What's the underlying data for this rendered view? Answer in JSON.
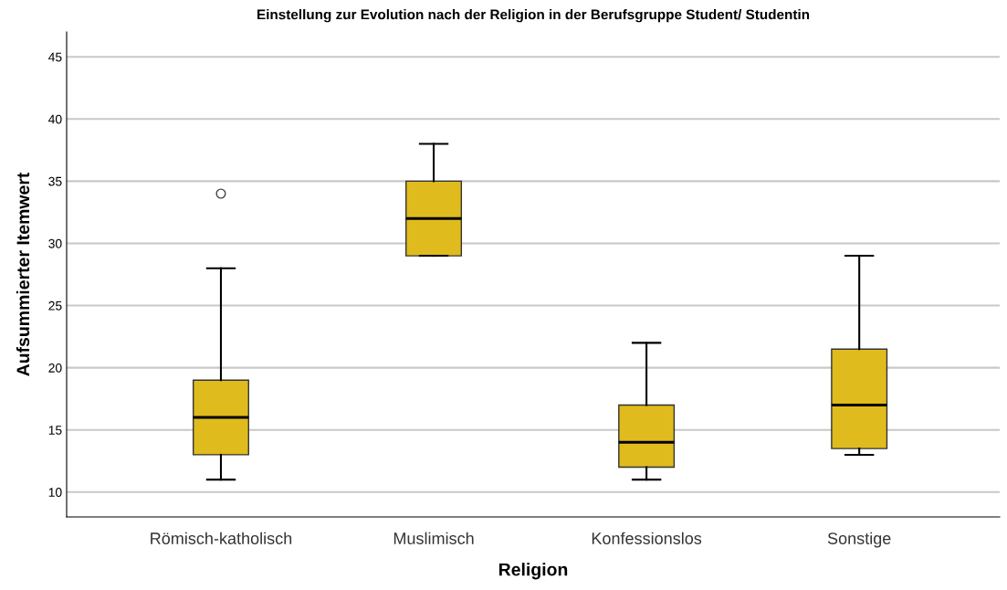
{
  "chart_data": {
    "type": "box",
    "title": "Einstellung zur Evolution nach der Religion in der Berufsgruppe Student/ Studentin",
    "xlabel": "Religion",
    "ylabel": "Aufsummierter Itemwert",
    "categories": [
      "Römisch-katholisch",
      "Muslimisch",
      "Konfessionslos",
      "Sonstige"
    ],
    "boxes": [
      {
        "low": 11,
        "q1": 13,
        "median": 16,
        "q3": 19,
        "high": 28,
        "outliers": [
          34
        ]
      },
      {
        "low": 29,
        "q1": 29,
        "median": 32,
        "q3": 35,
        "high": 38
      },
      {
        "low": 11,
        "q1": 12,
        "median": 14,
        "q3": 17,
        "high": 22
      },
      {
        "low": 13,
        "q1": 13.5,
        "median": 17,
        "q3": 21.5,
        "high": 29
      }
    ],
    "color": "#dfbb1e",
    "ylim": [
      8,
      47
    ],
    "yticks": [
      10,
      15,
      20,
      25,
      30,
      35,
      40,
      45
    ],
    "grid": "y"
  }
}
